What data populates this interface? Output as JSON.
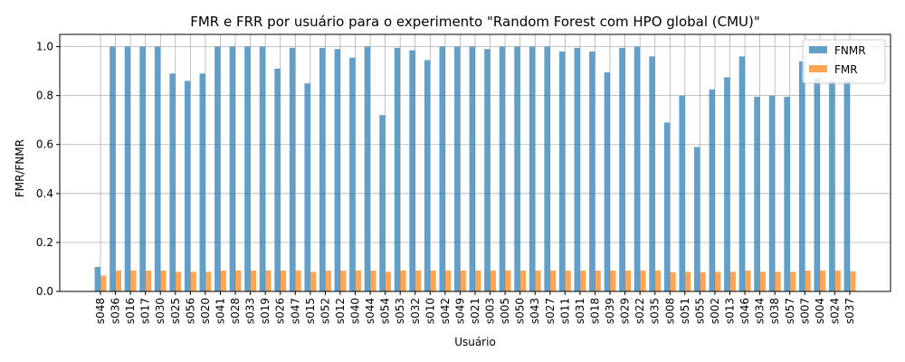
{
  "chart_data": {
    "type": "bar",
    "title": "FMR e FRR por usuário para o experimento \"Random Forest com HPO global (CMU)\"",
    "xlabel": "Usuário",
    "ylabel": "FMR/FNMR",
    "ylim": [
      0,
      1.05
    ],
    "yticks": [
      0.0,
      0.2,
      0.4,
      0.6,
      0.8,
      1.0
    ],
    "ytick_labels": [
      "0.0",
      "0.2",
      "0.4",
      "0.6",
      "0.8",
      "1.0"
    ],
    "grid": true,
    "legend_position": "top-right",
    "categories": [
      "s048",
      "s036",
      "s016",
      "s017",
      "s030",
      "s025",
      "s056",
      "s020",
      "s041",
      "s028",
      "s033",
      "s019",
      "s026",
      "s047",
      "s015",
      "s052",
      "s012",
      "s040",
      "s044",
      "s054",
      "s053",
      "s032",
      "s010",
      "s042",
      "s049",
      "s021",
      "s003",
      "s005",
      "s050",
      "s043",
      "s027",
      "s011",
      "s031",
      "s018",
      "s039",
      "s029",
      "s022",
      "s035",
      "s008",
      "s051",
      "s055",
      "s002",
      "s013",
      "s046",
      "s034",
      "s038",
      "s057",
      "s007",
      "s004",
      "s024",
      "s037"
    ],
    "series": [
      {
        "name": "FNMR",
        "color": "#1f77b4",
        "values": [
          0.1,
          1.0,
          1.0,
          1.0,
          1.0,
          0.89,
          0.86,
          0.89,
          1.0,
          1.0,
          1.0,
          1.0,
          0.91,
          0.995,
          0.85,
          0.995,
          0.99,
          0.955,
          1.0,
          0.72,
          0.995,
          0.985,
          0.945,
          1.0,
          1.0,
          1.0,
          0.99,
          1.0,
          1.0,
          1.0,
          1.0,
          0.98,
          0.995,
          0.98,
          0.895,
          0.995,
          1.0,
          0.96,
          0.69,
          0.8,
          0.59,
          0.825,
          0.875,
          0.96,
          0.795,
          0.8,
          0.795,
          0.94,
          0.87,
          0.86,
          0.86
        ]
      },
      {
        "name": "FMR",
        "color": "#ff7f0e",
        "values": [
          0.065,
          0.085,
          0.085,
          0.085,
          0.085,
          0.08,
          0.08,
          0.08,
          0.085,
          0.085,
          0.085,
          0.085,
          0.085,
          0.085,
          0.08,
          0.085,
          0.085,
          0.085,
          0.085,
          0.08,
          0.085,
          0.085,
          0.085,
          0.085,
          0.085,
          0.085,
          0.085,
          0.085,
          0.085,
          0.085,
          0.085,
          0.085,
          0.085,
          0.085,
          0.085,
          0.085,
          0.085,
          0.085,
          0.078,
          0.08,
          0.078,
          0.08,
          0.08,
          0.085,
          0.08,
          0.08,
          0.08,
          0.085,
          0.085,
          0.085,
          0.082
        ]
      }
    ]
  }
}
